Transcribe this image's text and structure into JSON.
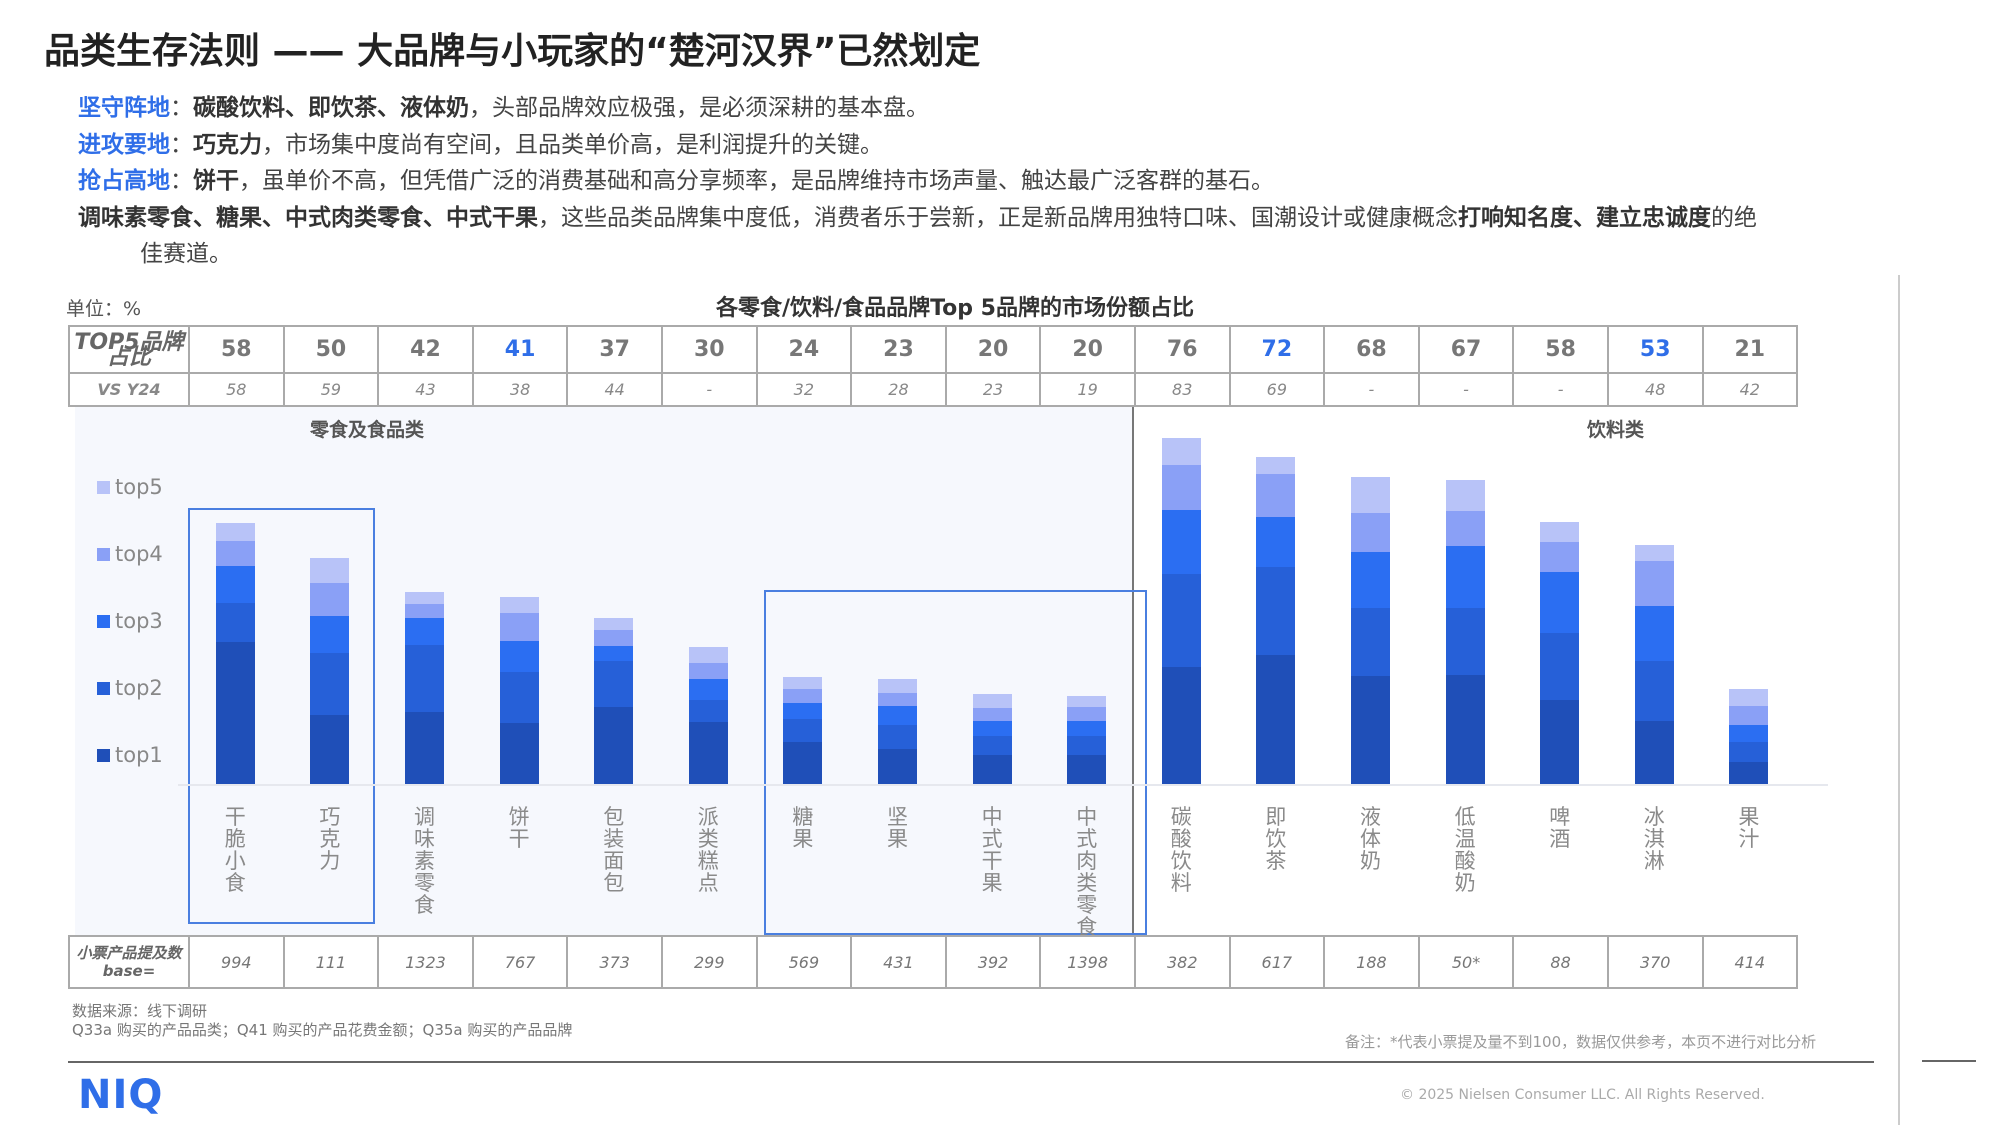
{
  "title": "品类生存法则 —— 大品牌与小玩家的“楚河汉界”已然划定",
  "bullets": [
    {
      "label": "坚守阵地",
      "sep": "：",
      "bold": "碳酸饮料、即饮茶、液体奶",
      "text": "，头部品牌效应极强，是必须深耕的基本盘。"
    },
    {
      "label": "进攻要地",
      "sep": "：",
      "bold": "巧克力",
      "text": "，市场集中度尚有空间，且品类单价高，是利润提升的关键。"
    },
    {
      "label": "抢占高地",
      "sep": "：",
      "bold": "饼干",
      "text": "，虽单价不高，但凭借广泛的消费基础和高分享频率，是品牌维持市场声量、触达最广泛客群的基石。"
    },
    {
      "bold": "调味素零食、糖果、中式肉类零食、中式干果",
      "text": "，这些品类品牌集中度低，消费者乐于尝新，正是新品牌用独特口味、国潮设计或健康概念",
      "bold2": "打响知名度、建立忠诚度",
      "text2": "的绝",
      "cont": "佳赛道。"
    }
  ],
  "unit_label": "单位：%",
  "colors": {
    "top1": "#1f4fb8",
    "top2": "#2660d8",
    "top3": "#2b6ef2",
    "top4": "#8aa0f6",
    "top5": "#b8c3f8",
    "accent": "#2f6ee8",
    "highlight_box": "#4a7fe0"
  },
  "table": {
    "row1_label": "TOP5品牌占比",
    "row2_label": "VS Y24",
    "row3_label": "小票产品提及数base=",
    "top5_share": [
      "58",
      "50",
      "42",
      "41",
      "37",
      "30",
      "24",
      "23",
      "20",
      "20",
      "76",
      "72",
      "68",
      "67",
      "58",
      "53",
      "21"
    ],
    "vs_y24": [
      "58",
      "59",
      "43",
      "38",
      "44",
      "-",
      "32",
      "28",
      "23",
      "19",
      "83",
      "69",
      "-",
      "-",
      "-",
      "48",
      "42"
    ],
    "base": [
      "994",
      "111",
      "1323",
      "767",
      "373",
      "299",
      "569",
      "431",
      "392",
      "1398",
      "382",
      "617",
      "188",
      "50*",
      "88",
      "370",
      "414"
    ],
    "highlighted_columns": [
      3,
      11,
      15
    ]
  },
  "groups": {
    "food": "零食及食品类",
    "beverage": "饮料类"
  },
  "legend": [
    "top5",
    "top4",
    "top3",
    "top2",
    "top1"
  ],
  "chart_data": {
    "type": "bar",
    "stacked": true,
    "title": "各零食/饮料/食品品牌Top 5品牌的市场份额占比",
    "xlabel": "",
    "ylabel": "单位：%",
    "ylim": [
      0,
      80
    ],
    "grid": false,
    "legend_position": "left",
    "categories": [
      "干脆小食",
      "巧克力",
      "调味素零食",
      "饼干",
      "包装面包",
      "派类糕点",
      "糖果",
      "坚果",
      "中式干果",
      "中式肉类零食",
      "碳酸饮料",
      "即饮茶",
      "液体奶",
      "低温酸奶",
      "啤酒",
      "冰淇淋",
      "果汁"
    ],
    "category_groups": [
      {
        "name": "零食及食品类",
        "range": [
          0,
          9
        ]
      },
      {
        "name": "饮料类",
        "range": [
          10,
          16
        ]
      }
    ],
    "series": [
      {
        "name": "top1",
        "values": [
          31.1,
          15.1,
          15.8,
          13.4,
          17.0,
          13.7,
          9.2,
          7.7,
          6.4,
          6.4,
          25.7,
          28.4,
          23.7,
          24.0,
          18.5,
          13.8,
          4.8
        ]
      },
      {
        "name": "top2",
        "values": [
          8.6,
          13.7,
          14.7,
          11.2,
          10.0,
          4.8,
          5.1,
          5.3,
          4.1,
          4.1,
          20.5,
          19.3,
          14.9,
          14.7,
          14.7,
          13.3,
          4.4
        ]
      },
      {
        "name": "top3",
        "values": [
          8.2,
          8.1,
          5.9,
          6.8,
          3.4,
          4.5,
          3.4,
          4.1,
          3.4,
          3.4,
          14.0,
          10.9,
          12.5,
          13.7,
          13.4,
          12.0,
          3.8
        ]
      },
      {
        "name": "top4",
        "values": [
          5.5,
          7.2,
          3.1,
          6.2,
          3.4,
          3.7,
          3.1,
          3.0,
          2.8,
          3.0,
          9.9,
          9.5,
          8.5,
          7.5,
          6.5,
          10.0,
          4.2
        ]
      },
      {
        "name": "top5",
        "values": [
          4.0,
          5.5,
          2.7,
          3.4,
          2.7,
          3.4,
          2.7,
          2.9,
          3.0,
          2.5,
          5.9,
          3.7,
          7.8,
          7.0,
          4.4,
          3.4,
          3.7
        ]
      }
    ],
    "totals": [
      58,
      50,
      42,
      41,
      37,
      30,
      24,
      23,
      20,
      20,
      76,
      72,
      68,
      67,
      58,
      53,
      21
    ],
    "annotations": [
      {
        "type": "box",
        "covers": [
          "干脆小食",
          "巧克力"
        ]
      },
      {
        "type": "box",
        "covers": [
          "糖果",
          "坚果",
          "中式干果",
          "中式肉类零食"
        ]
      }
    ]
  },
  "footer": {
    "source_line1": "数据来源：线下调研",
    "source_line2": "Q33a 购买的产品品类；Q41 购买的产品花费金额；Q35a 购买的产品品牌",
    "note": "备注：*代表小票提及量不到100，数据仅供参考，本页不进行对比分析",
    "logo": "NIQ",
    "copyright": "© 2025 Nielsen Consumer LLC. All Rights Reserved."
  }
}
